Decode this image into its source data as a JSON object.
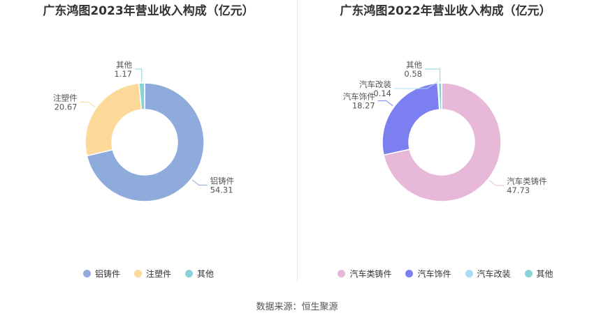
{
  "source": "数据来源：恒生聚源",
  "chart_data": [
    {
      "type": "pie",
      "title": "广东鸿图2023年营业收入构成（亿元）",
      "slices": [
        {
          "name": "铝铸件",
          "value": 54.31,
          "label": "54.31",
          "color": "#8eabdb"
        },
        {
          "name": "注塑件",
          "value": 20.67,
          "label": "20.67",
          "color": "#fcd899"
        },
        {
          "name": "其他",
          "value": 1.17,
          "label": "1.17",
          "color": "#89d3d8"
        }
      ],
      "legend_position": "bottom",
      "donut": true
    },
    {
      "type": "pie",
      "title": "广东鸿图2022年营业收入构成（亿元）",
      "slices": [
        {
          "name": "汽车类铸件",
          "value": 47.73,
          "label": "47.73",
          "color": "#e8b8d8"
        },
        {
          "name": "汽车饰件",
          "value": 18.27,
          "label": "18.27",
          "color": "#7b7ff0"
        },
        {
          "name": "汽车改装",
          "value": 0.14,
          "label": "0.14",
          "color": "#a9dcf6"
        },
        {
          "name": "其他",
          "value": 0.58,
          "label": "0.58",
          "color": "#89d3d8"
        }
      ],
      "legend_position": "bottom",
      "donut": true
    }
  ]
}
